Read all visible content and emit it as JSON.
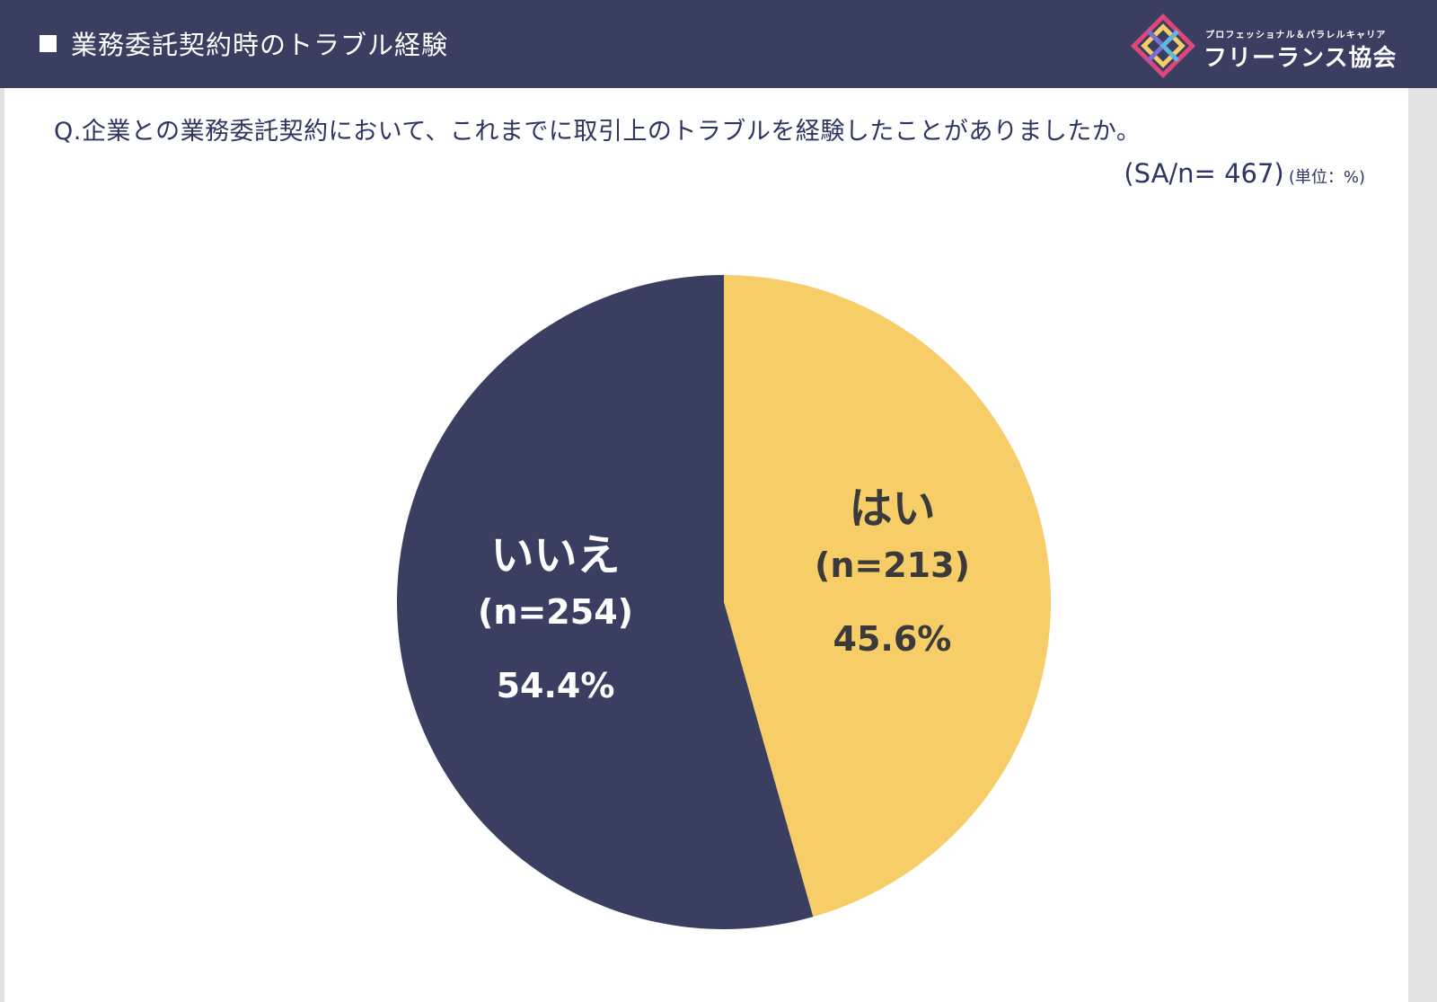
{
  "header": {
    "title": "業務委託契約時のトラブル経験",
    "logo": {
      "subtitle": "プロフェッショナル＆パラレルキャリア",
      "name": "フリーランス協会"
    }
  },
  "question": "Q.企業との業務委託契約において、これまでに取引上のトラブルを経験したことがありましたか。",
  "sample_note": {
    "n": "(SA/n= 467)",
    "unit": "(単位：%)"
  },
  "chart_data": {
    "type": "pie",
    "title": "",
    "start": "12 o'clock",
    "direction": "clockwise",
    "slices": [
      {
        "label": "はい",
        "n_label": "(n=213)",
        "count": 213,
        "value": 45.6,
        "value_label": "45.6%",
        "color": "#f6cd67",
        "text_color": "#3a3a3a"
      },
      {
        "label": "いいえ",
        "n_label": "(n=254)",
        "count": 254,
        "value": 54.4,
        "value_label": "54.4%",
        "color": "#3a3f61",
        "text_color": "#ffffff"
      }
    ]
  },
  "colors": {
    "header_bg": "#3a3f61",
    "accent_yellow": "#f6cd67",
    "question_text": "#2e3560"
  }
}
